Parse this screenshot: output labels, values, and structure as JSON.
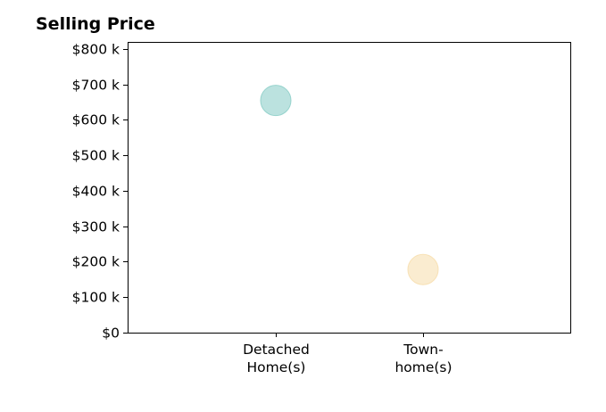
{
  "chart_data": {
    "type": "scatter",
    "title": "Selling Price",
    "xlabel": "",
    "ylabel": "",
    "ylim": [
      0,
      820000
    ],
    "grid": false,
    "y_ticks": [
      {
        "value": 0,
        "label": "$0"
      },
      {
        "value": 100000,
        "label": "$100 k"
      },
      {
        "value": 200000,
        "label": "$200 k"
      },
      {
        "value": 300000,
        "label": "$300 k"
      },
      {
        "value": 400000,
        "label": "$400 k"
      },
      {
        "value": 500000,
        "label": "$500 k"
      },
      {
        "value": 600000,
        "label": "$600 k"
      },
      {
        "value": 700000,
        "label": "$700 k"
      },
      {
        "value": 800000,
        "label": "$800 k"
      }
    ],
    "categories": [
      {
        "lines": [
          "Detached",
          "Home(s)"
        ]
      },
      {
        "lines": [
          "Town-",
          "home(s)"
        ]
      }
    ],
    "points": [
      {
        "category_index": 0,
        "value": 655000,
        "color": "#8ecfc9"
      },
      {
        "category_index": 1,
        "value": 178000,
        "color": "#f7dfb0"
      }
    ]
  }
}
